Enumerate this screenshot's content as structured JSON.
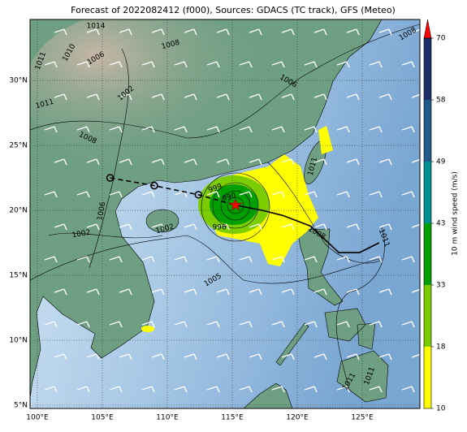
{
  "title": "Forecast of 2022082412 (f000), Sources: GDACS (TC track), GFS (Meteo)",
  "map": {
    "lon_range": [
      99.44,
      129.44
    ],
    "lat_range": [
      4.75,
      34.69
    ],
    "grid": true,
    "lon_ticks": [
      {
        "value": 100,
        "label": "100°E"
      },
      {
        "value": 105,
        "label": "105°E"
      },
      {
        "value": 110,
        "label": "110°E"
      },
      {
        "value": 115,
        "label": "115°E"
      },
      {
        "value": 120,
        "label": "120°E"
      },
      {
        "value": 125,
        "label": "125°E"
      }
    ],
    "lat_ticks": [
      {
        "value": 5,
        "label": "5°N"
      },
      {
        "value": 10,
        "label": "10°N"
      },
      {
        "value": 15,
        "label": "15°N"
      },
      {
        "value": 20,
        "label": "20°N"
      },
      {
        "value": 25,
        "label": "25°N"
      },
      {
        "value": 30,
        "label": "30°N"
      }
    ]
  },
  "track": {
    "past": {
      "lon": [
        105.6,
        109.0,
        112.4
      ],
      "lat": [
        22.5,
        21.9,
        21.2
      ]
    },
    "forecast": {
      "lon": [
        115.25,
        117.3,
        118.9,
        121.0,
        123.2,
        124.8,
        126.3
      ],
      "lat": [
        20.4,
        20.0,
        19.6,
        18.8,
        16.75,
        16.75,
        17.5
      ]
    },
    "current": {
      "lon": 115.25,
      "lat": 20.4,
      "color": "#ff0000"
    }
  },
  "colorbar": {
    "label": "10 m wind speed (m/s)",
    "levels": [
      10,
      18,
      33,
      43,
      49,
      58,
      70
    ],
    "colors": [
      "#ffff00",
      "#7ccd00",
      "#00a000",
      "#009090",
      "#1f5c8c",
      "#1d2d66"
    ],
    "extend_color": "#ff0000"
  },
  "isobar_labels": [
    "1014",
    "1008",
    "1011",
    "1010",
    "1006",
    "1002",
    "1011",
    "1008",
    "1006",
    "1008",
    "1011",
    "999",
    "990",
    "996",
    "1002",
    "1002",
    "1006",
    "1008",
    "1011",
    "1005",
    "1011",
    "1011"
  ]
}
